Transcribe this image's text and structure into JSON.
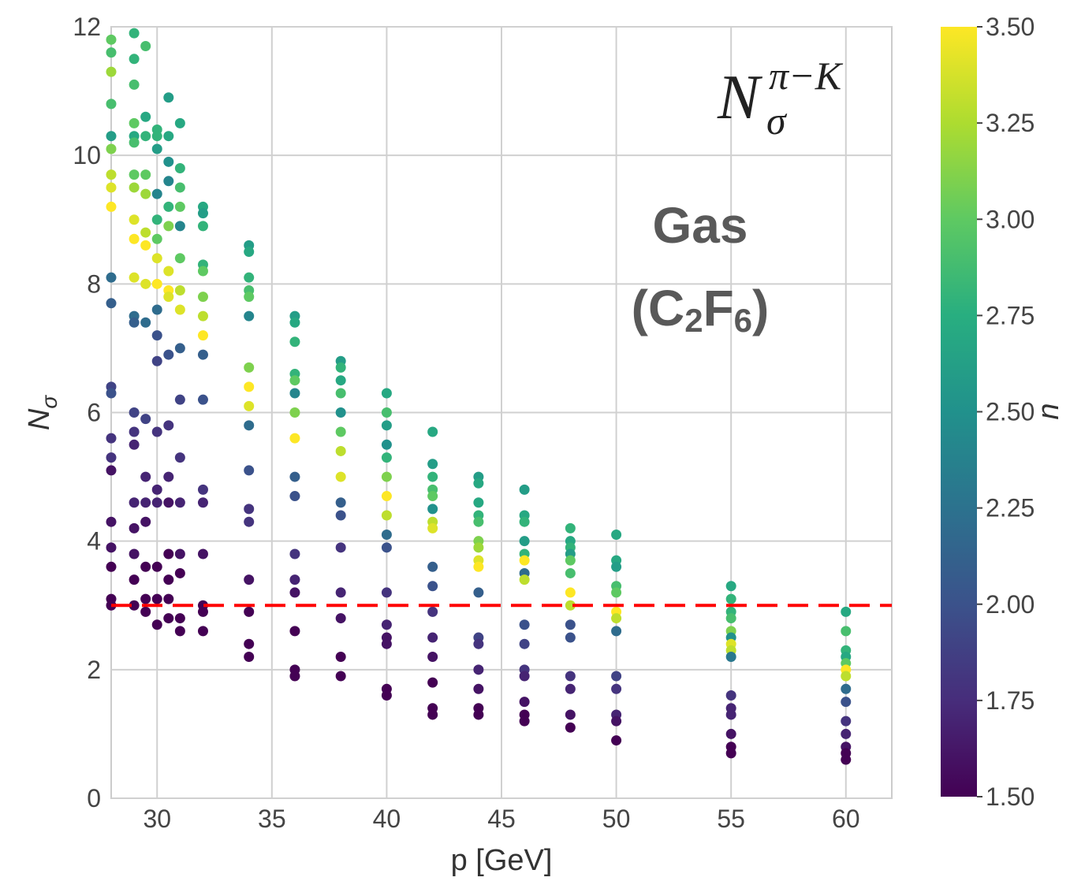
{
  "chart_data": {
    "type": "scatter",
    "xlabel": "p [GeV]",
    "ylabel": "N",
    "ylabel_sub": "σ",
    "xlim": [
      28,
      62
    ],
    "ylim": [
      0,
      12
    ],
    "x_ticks": [
      30,
      35,
      40,
      45,
      50,
      55,
      60
    ],
    "y_ticks": [
      0,
      2,
      4,
      6,
      8,
      10,
      12
    ],
    "grid": true,
    "threshold": {
      "y": 3.0,
      "color": "#ff0000",
      "style": "dashed"
    },
    "colorbar": {
      "label": "n",
      "range": [
        1.5,
        3.5
      ],
      "ticks": [
        "1.50",
        "1.75",
        "2.00",
        "2.25",
        "2.50",
        "2.75",
        "3.00",
        "3.25",
        "3.50"
      ],
      "colormap": "viridis"
    },
    "annotations": {
      "formula_main": "N",
      "formula_sup": "π−K",
      "formula_sub": "σ",
      "medium_line1": "Gas",
      "medium_line2_a": "(C",
      "medium_line2_sub1": "2",
      "medium_line2_b": "F",
      "medium_line2_sub2": "6",
      "medium_line2_c": ")"
    },
    "series": [
      {
        "x": 28,
        "points": [
          [
            11.8,
            3.0
          ],
          [
            11.6,
            2.9
          ],
          [
            11.3,
            3.2
          ],
          [
            10.8,
            2.9
          ],
          [
            10.3,
            2.6
          ],
          [
            10.1,
            3.1
          ],
          [
            9.7,
            3.3
          ],
          [
            9.5,
            3.4
          ],
          [
            9.2,
            3.5
          ],
          [
            8.1,
            2.2
          ],
          [
            7.7,
            2.1
          ],
          [
            6.4,
            1.9
          ],
          [
            6.3,
            2.0
          ],
          [
            5.6,
            1.8
          ],
          [
            5.3,
            1.8
          ],
          [
            5.1,
            1.6
          ],
          [
            4.3,
            1.6
          ],
          [
            3.9,
            1.6
          ],
          [
            3.6,
            1.5
          ],
          [
            3.1,
            1.5
          ],
          [
            3.0,
            1.5
          ]
        ]
      },
      {
        "x": 29,
        "points": [
          [
            11.9,
            2.8
          ],
          [
            11.5,
            2.8
          ],
          [
            11.1,
            2.9
          ],
          [
            10.5,
            3.0
          ],
          [
            10.3,
            2.7
          ],
          [
            10.2,
            2.9
          ],
          [
            9.7,
            3.0
          ],
          [
            9.5,
            3.2
          ],
          [
            9.0,
            3.4
          ],
          [
            8.7,
            3.5
          ],
          [
            8.1,
            3.4
          ],
          [
            7.5,
            2.2
          ],
          [
            7.4,
            2.1
          ],
          [
            6.0,
            1.9
          ],
          [
            5.7,
            1.8
          ],
          [
            5.5,
            1.7
          ],
          [
            4.6,
            1.7
          ],
          [
            4.2,
            1.6
          ],
          [
            3.8,
            1.6
          ],
          [
            3.4,
            1.5
          ],
          [
            3.0,
            1.5
          ]
        ]
      },
      {
        "x": 29.5,
        "points": [
          [
            11.7,
            2.9
          ],
          [
            10.6,
            2.7
          ],
          [
            10.3,
            2.8
          ],
          [
            9.7,
            3.0
          ],
          [
            9.4,
            3.2
          ],
          [
            8.8,
            3.3
          ],
          [
            8.6,
            3.5
          ],
          [
            8.0,
            3.4
          ],
          [
            7.4,
            2.2
          ],
          [
            5.9,
            1.9
          ],
          [
            5.0,
            1.7
          ],
          [
            4.6,
            1.7
          ],
          [
            4.3,
            1.6
          ],
          [
            3.6,
            1.5
          ],
          [
            3.1,
            1.5
          ],
          [
            2.9,
            1.5
          ]
        ]
      },
      {
        "x": 30,
        "points": [
          [
            10.4,
            2.8
          ],
          [
            10.3,
            2.8
          ],
          [
            10.1,
            2.6
          ],
          [
            9.4,
            2.4
          ],
          [
            9.0,
            2.8
          ],
          [
            8.7,
            3.0
          ],
          [
            8.4,
            3.4
          ],
          [
            8.0,
            3.5
          ],
          [
            7.6,
            2.2
          ],
          [
            7.2,
            2.0
          ],
          [
            6.8,
            1.9
          ],
          [
            5.7,
            1.8
          ],
          [
            4.8,
            1.7
          ],
          [
            4.6,
            1.7
          ],
          [
            3.6,
            1.5
          ],
          [
            3.1,
            1.5
          ],
          [
            2.7,
            1.5
          ]
        ]
      },
      {
        "x": 30.5,
        "points": [
          [
            10.9,
            2.6
          ],
          [
            10.3,
            2.7
          ],
          [
            9.9,
            2.5
          ],
          [
            9.6,
            2.4
          ],
          [
            9.2,
            2.8
          ],
          [
            8.9,
            3.1
          ],
          [
            8.2,
            3.4
          ],
          [
            7.9,
            3.5
          ],
          [
            7.8,
            3.4
          ],
          [
            6.9,
            2.0
          ],
          [
            5.8,
            1.8
          ],
          [
            5.0,
            1.7
          ],
          [
            4.6,
            1.6
          ],
          [
            3.8,
            1.5
          ],
          [
            3.4,
            1.5
          ],
          [
            3.1,
            1.5
          ],
          [
            2.8,
            1.5
          ]
        ]
      },
      {
        "x": 31,
        "points": [
          [
            10.5,
            2.7
          ],
          [
            9.8,
            2.8
          ],
          [
            9.5,
            2.9
          ],
          [
            9.2,
            3.0
          ],
          [
            8.9,
            2.4
          ],
          [
            8.4,
            3.0
          ],
          [
            7.9,
            3.3
          ],
          [
            7.6,
            3.4
          ],
          [
            7.0,
            2.1
          ],
          [
            6.2,
            1.9
          ],
          [
            5.3,
            1.8
          ],
          [
            4.6,
            1.7
          ],
          [
            3.8,
            1.6
          ],
          [
            3.5,
            1.5
          ],
          [
            2.8,
            1.5
          ],
          [
            2.6,
            1.5
          ]
        ]
      },
      {
        "x": 32,
        "points": [
          [
            9.2,
            2.7
          ],
          [
            9.1,
            2.6
          ],
          [
            8.9,
            2.8
          ],
          [
            8.3,
            2.8
          ],
          [
            8.2,
            3.0
          ],
          [
            7.8,
            3.1
          ],
          [
            7.5,
            3.3
          ],
          [
            7.2,
            3.5
          ],
          [
            6.9,
            2.1
          ],
          [
            6.2,
            2.0
          ],
          [
            4.8,
            1.8
          ],
          [
            4.6,
            1.7
          ],
          [
            3.8,
            1.6
          ],
          [
            3.0,
            1.5
          ],
          [
            2.9,
            1.5
          ],
          [
            2.6,
            1.5
          ]
        ]
      },
      {
        "x": 34,
        "points": [
          [
            8.6,
            2.6
          ],
          [
            8.5,
            2.7
          ],
          [
            8.1,
            2.8
          ],
          [
            7.9,
            2.9
          ],
          [
            7.8,
            3.0
          ],
          [
            7.5,
            2.4
          ],
          [
            6.7,
            3.1
          ],
          [
            6.4,
            3.5
          ],
          [
            6.1,
            3.4
          ],
          [
            5.8,
            2.2
          ],
          [
            5.1,
            2.0
          ],
          [
            4.5,
            1.8
          ],
          [
            4.3,
            1.8
          ],
          [
            3.4,
            1.6
          ],
          [
            2.9,
            1.5
          ],
          [
            2.4,
            1.5
          ],
          [
            2.2,
            1.5
          ]
        ]
      },
      {
        "x": 36,
        "points": [
          [
            7.5,
            2.6
          ],
          [
            7.4,
            2.7
          ],
          [
            7.1,
            2.8
          ],
          [
            6.6,
            2.8
          ],
          [
            6.5,
            3.0
          ],
          [
            6.3,
            2.4
          ],
          [
            6.0,
            3.1
          ],
          [
            5.6,
            3.5
          ],
          [
            5.0,
            2.1
          ],
          [
            4.7,
            2.0
          ],
          [
            3.8,
            1.8
          ],
          [
            3.4,
            1.7
          ],
          [
            3.2,
            1.6
          ],
          [
            2.6,
            1.5
          ],
          [
            2.0,
            1.5
          ],
          [
            1.9,
            1.5
          ]
        ]
      },
      {
        "x": 38,
        "points": [
          [
            6.8,
            2.6
          ],
          [
            6.7,
            2.8
          ],
          [
            6.5,
            2.7
          ],
          [
            6.3,
            2.9
          ],
          [
            6.0,
            2.5
          ],
          [
            5.7,
            3.0
          ],
          [
            5.4,
            3.3
          ],
          [
            5.0,
            3.4
          ],
          [
            4.6,
            2.1
          ],
          [
            4.4,
            2.0
          ],
          [
            3.9,
            1.8
          ],
          [
            3.2,
            1.7
          ],
          [
            2.8,
            1.6
          ],
          [
            2.2,
            1.5
          ],
          [
            1.9,
            1.5
          ]
        ]
      },
      {
        "x": 40,
        "points": [
          [
            6.3,
            2.7
          ],
          [
            6.0,
            2.9
          ],
          [
            5.8,
            2.6
          ],
          [
            5.5,
            2.5
          ],
          [
            5.3,
            2.8
          ],
          [
            5.0,
            3.1
          ],
          [
            4.7,
            3.5
          ],
          [
            4.4,
            3.3
          ],
          [
            4.1,
            2.2
          ],
          [
            3.9,
            2.0
          ],
          [
            3.2,
            1.8
          ],
          [
            2.7,
            1.7
          ],
          [
            2.5,
            1.6
          ],
          [
            2.4,
            1.6
          ],
          [
            1.7,
            1.5
          ],
          [
            1.6,
            1.5
          ]
        ]
      },
      {
        "x": 42,
        "points": [
          [
            5.7,
            2.7
          ],
          [
            5.2,
            2.6
          ],
          [
            5.0,
            2.8
          ],
          [
            4.8,
            2.9
          ],
          [
            4.7,
            3.0
          ],
          [
            4.5,
            2.5
          ],
          [
            4.3,
            3.3
          ],
          [
            4.2,
            3.4
          ],
          [
            3.6,
            2.1
          ],
          [
            3.3,
            2.0
          ],
          [
            2.9,
            1.8
          ],
          [
            2.5,
            1.7
          ],
          [
            2.2,
            1.6
          ],
          [
            1.8,
            1.5
          ],
          [
            1.4,
            1.5
          ],
          [
            1.3,
            1.5
          ]
        ]
      },
      {
        "x": 44,
        "points": [
          [
            5.0,
            2.6
          ],
          [
            4.9,
            2.7
          ],
          [
            4.6,
            2.7
          ],
          [
            4.4,
            2.8
          ],
          [
            4.3,
            2.9
          ],
          [
            4.0,
            3.1
          ],
          [
            3.9,
            3.2
          ],
          [
            3.7,
            3.4
          ],
          [
            3.6,
            3.5
          ],
          [
            3.2,
            2.1
          ],
          [
            2.5,
            1.9
          ],
          [
            2.4,
            1.8
          ],
          [
            2.0,
            1.7
          ],
          [
            1.7,
            1.6
          ],
          [
            1.4,
            1.5
          ],
          [
            1.3,
            1.5
          ]
        ]
      },
      {
        "x": 46,
        "points": [
          [
            4.8,
            2.6
          ],
          [
            4.4,
            2.7
          ],
          [
            4.3,
            2.8
          ],
          [
            4.0,
            2.6
          ],
          [
            3.8,
            2.8
          ],
          [
            3.7,
            3.5
          ],
          [
            3.5,
            2.2
          ],
          [
            3.4,
            3.3
          ],
          [
            2.7,
            2.0
          ],
          [
            2.4,
            1.9
          ],
          [
            2.0,
            1.8
          ],
          [
            1.9,
            1.7
          ],
          [
            1.5,
            1.6
          ],
          [
            1.3,
            1.5
          ],
          [
            1.2,
            1.5
          ]
        ]
      },
      {
        "x": 48,
        "points": [
          [
            4.2,
            2.8
          ],
          [
            4.0,
            2.7
          ],
          [
            3.9,
            2.8
          ],
          [
            3.8,
            2.6
          ],
          [
            3.7,
            3.0
          ],
          [
            3.5,
            2.9
          ],
          [
            3.2,
            3.5
          ],
          [
            3.0,
            3.3
          ],
          [
            2.7,
            2.0
          ],
          [
            2.5,
            2.0
          ],
          [
            1.9,
            1.8
          ],
          [
            1.7,
            1.7
          ],
          [
            1.3,
            1.6
          ],
          [
            1.1,
            1.5
          ]
        ]
      },
      {
        "x": 50,
        "points": [
          [
            4.1,
            2.7
          ],
          [
            3.7,
            2.7
          ],
          [
            3.6,
            2.6
          ],
          [
            3.3,
            2.9
          ],
          [
            3.2,
            3.0
          ],
          [
            2.9,
            3.5
          ],
          [
            2.8,
            3.3
          ],
          [
            2.6,
            2.2
          ],
          [
            1.9,
            1.9
          ],
          [
            1.7,
            1.8
          ],
          [
            1.3,
            1.7
          ],
          [
            1.2,
            1.6
          ],
          [
            0.9,
            1.5
          ]
        ]
      },
      {
        "x": 55,
        "points": [
          [
            3.3,
            2.7
          ],
          [
            3.1,
            2.8
          ],
          [
            2.9,
            2.8
          ],
          [
            2.8,
            2.9
          ],
          [
            2.6,
            3.1
          ],
          [
            2.5,
            2.5
          ],
          [
            2.4,
            3.4
          ],
          [
            2.3,
            3.3
          ],
          [
            2.2,
            2.3
          ],
          [
            1.6,
            1.8
          ],
          [
            1.4,
            1.7
          ],
          [
            1.3,
            1.7
          ],
          [
            1.0,
            1.6
          ],
          [
            0.8,
            1.5
          ],
          [
            0.7,
            1.5
          ]
        ]
      },
      {
        "x": 60,
        "points": [
          [
            2.9,
            2.7
          ],
          [
            2.6,
            2.9
          ],
          [
            2.3,
            2.8
          ],
          [
            2.2,
            2.7
          ],
          [
            2.1,
            3.0
          ],
          [
            2.0,
            3.5
          ],
          [
            1.9,
            3.3
          ],
          [
            1.7,
            2.2
          ],
          [
            1.5,
            2.0
          ],
          [
            1.2,
            1.8
          ],
          [
            1.0,
            1.7
          ],
          [
            0.8,
            1.6
          ],
          [
            0.7,
            1.5
          ],
          [
            0.6,
            1.5
          ]
        ]
      }
    ]
  }
}
